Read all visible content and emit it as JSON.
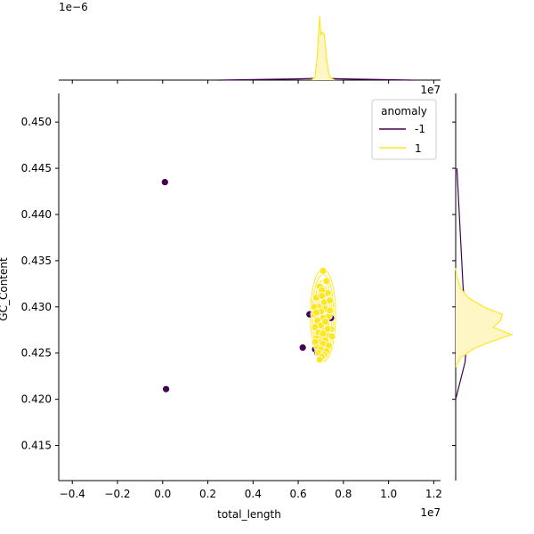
{
  "chart_data": {
    "type": "scatter",
    "xlabel": "total_length",
    "ylabel": "GC_Content",
    "x_offset_label": "1e7",
    "y_offset_label": "",
    "top_marginal_offset_label": "1e−6",
    "right_marginal_offset_label": "1e7",
    "xlim": [
      -4600000,
      12300000
    ],
    "ylim": [
      0.4112,
      0.4531
    ],
    "x_ticks": [
      -4000000,
      -2000000,
      0,
      2000000,
      4000000,
      6000000,
      8000000,
      10000000,
      12000000
    ],
    "x_tick_labels": [
      "−0.4",
      "−0.2",
      "0.0",
      "0.2",
      "0.4",
      "0.6",
      "0.8",
      "1.0",
      "1.2"
    ],
    "y_ticks": [
      0.415,
      0.42,
      0.425,
      0.43,
      0.435,
      0.44,
      0.445,
      0.45
    ],
    "y_tick_labels": [
      "0.415",
      "0.420",
      "0.425",
      "0.430",
      "0.435",
      "0.440",
      "0.445",
      "0.450"
    ],
    "legend": {
      "title": "anomaly",
      "placement": "top-right",
      "entries": [
        {
          "label": "-1",
          "color": "#440154"
        },
        {
          "label": "1",
          "color": "#fde725"
        }
      ]
    },
    "series": [
      {
        "name": "-1",
        "color": "#440154",
        "points": [
          [
            100000,
            0.4435
          ],
          [
            150000,
            0.4211
          ],
          [
            6500000,
            0.4292
          ],
          [
            6200000,
            0.4256
          ],
          [
            6750000,
            0.4254
          ],
          [
            7450000,
            0.4288
          ],
          [
            6850000,
            0.425
          ]
        ]
      },
      {
        "name": "1",
        "color": "#fde725",
        "points": [
          [
            7100000,
            0.4339
          ],
          [
            7250000,
            0.4328
          ],
          [
            6950000,
            0.4322
          ],
          [
            7300000,
            0.4315
          ],
          [
            7050000,
            0.4318
          ],
          [
            6800000,
            0.431
          ],
          [
            7150000,
            0.4305
          ],
          [
            7400000,
            0.4307
          ],
          [
            6900000,
            0.43
          ],
          [
            7200000,
            0.4298
          ],
          [
            7000000,
            0.4295
          ],
          [
            6700000,
            0.4292
          ],
          [
            7350000,
            0.429
          ],
          [
            7100000,
            0.4288
          ],
          [
            6850000,
            0.4285
          ],
          [
            7250000,
            0.4282
          ],
          [
            7000000,
            0.428
          ],
          [
            6750000,
            0.4278
          ],
          [
            7450000,
            0.4276
          ],
          [
            7150000,
            0.4274
          ],
          [
            6900000,
            0.4272
          ],
          [
            7300000,
            0.427
          ],
          [
            7050000,
            0.4268
          ],
          [
            6800000,
            0.4266
          ],
          [
            7200000,
            0.4264
          ],
          [
            7500000,
            0.4268
          ],
          [
            6950000,
            0.4262
          ],
          [
            7100000,
            0.426
          ],
          [
            7350000,
            0.4258
          ],
          [
            6850000,
            0.4256
          ],
          [
            7000000,
            0.4254
          ],
          [
            7250000,
            0.4252
          ],
          [
            6900000,
            0.425
          ],
          [
            7150000,
            0.4248
          ],
          [
            7050000,
            0.4246
          ],
          [
            6950000,
            0.4243
          ],
          [
            7200000,
            0.4284
          ],
          [
            6700000,
            0.43
          ],
          [
            7400000,
            0.4296
          ],
          [
            7050000,
            0.4312
          ],
          [
            6800000,
            0.4294
          ],
          [
            7300000,
            0.4276
          ],
          [
            6750000,
            0.4262
          ],
          [
            7100000,
            0.4271
          ]
        ]
      }
    ],
    "top_marginal": {
      "series": [
        {
          "name": "-1",
          "color": "#440154",
          "x": [
            2500000,
            6000000,
            7000000,
            8000000,
            11000000
          ],
          "density": [
            0,
            0.02,
            0.03,
            0.02,
            0
          ]
        },
        {
          "name": "1",
          "color": "#fde725",
          "x": [
            6600000,
            6750000,
            6850000,
            6950000,
            7000000,
            7050000,
            7150000,
            7250000,
            7350000,
            7450000,
            7600000
          ],
          "density": [
            0,
            0.05,
            0.4,
            1.0,
            0.7,
            0.75,
            0.72,
            0.35,
            0.1,
            0.03,
            0
          ]
        }
      ]
    },
    "right_marginal": {
      "series": [
        {
          "name": "-1",
          "color": "#440154",
          "y": [
            0.42,
            0.424,
            0.428,
            0.432,
            0.445
          ],
          "density": [
            0,
            0.15,
            0.2,
            0.12,
            0.02
          ]
        },
        {
          "name": "1",
          "color": "#fde725",
          "fill": "#fef6c5",
          "y": [
            0.4235,
            0.4245,
            0.4255,
            0.4262,
            0.427,
            0.4278,
            0.4285,
            0.4292,
            0.43,
            0.431,
            0.432,
            0.4332,
            0.4342
          ],
          "density": [
            0,
            0.08,
            0.3,
            0.55,
            0.9,
            0.6,
            0.72,
            0.75,
            0.45,
            0.2,
            0.08,
            0.02,
            0
          ]
        }
      ]
    }
  }
}
